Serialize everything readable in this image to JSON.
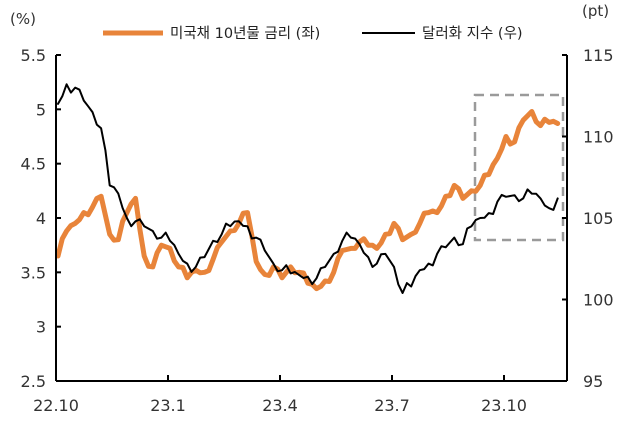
{
  "chart_data": {
    "type": "line",
    "title": "",
    "units": {
      "left": "(%)",
      "right": "(pt)"
    },
    "xlabel": "",
    "ylabel_left": "(%)",
    "ylabel_right": "(pt)",
    "x_tick_labels": [
      "22.10",
      "23.1",
      "23.4",
      "23.7",
      "23.10"
    ],
    "y_left_ticks": [
      "5.5",
      "5",
      "4.5",
      "4",
      "3.5",
      "3",
      "2.5"
    ],
    "y_right_ticks": [
      "115",
      "110",
      "105",
      "100",
      "95"
    ],
    "ylim_left": [
      2.5,
      5.5
    ],
    "ylim_right": [
      95,
      115
    ],
    "grid": false,
    "legend_position": "top",
    "annotations": [
      {
        "type": "dashed-box",
        "description": "Highlight of recent period (approx. Sep–Nov 2023)",
        "color": "#9A9A9A"
      }
    ],
    "x": [
      "22.10.03",
      "22.10.10",
      "22.10.17",
      "22.10.24",
      "22.10.31",
      "22.11.07",
      "22.11.14",
      "22.11.21",
      "22.11.28",
      "22.12.05",
      "22.12.12",
      "22.12.19",
      "22.12.26",
      "23.01.02",
      "23.01.09",
      "23.01.16",
      "23.01.23",
      "23.01.30",
      "23.02.06",
      "23.02.13",
      "23.02.20",
      "23.02.27",
      "23.03.06",
      "23.03.13",
      "23.03.20",
      "23.03.27",
      "23.04.03",
      "23.04.10",
      "23.04.17",
      "23.04.24",
      "23.05.01",
      "23.05.08",
      "23.05.15",
      "23.05.22",
      "23.05.29",
      "23.06.05",
      "23.06.12",
      "23.06.19",
      "23.06.26",
      "23.07.03",
      "23.07.10",
      "23.07.17",
      "23.07.24",
      "23.07.31",
      "23.08.07",
      "23.08.14",
      "23.08.21",
      "23.08.28",
      "23.09.04",
      "23.09.11",
      "23.09.18",
      "23.09.25",
      "23.10.02",
      "23.10.09",
      "23.10.16",
      "23.10.23",
      "23.10.30",
      "23.11.06",
      "23.11.13"
    ],
    "series": [
      {
        "name": "미국채 10년물 금리 (좌)",
        "axis": "left",
        "color": "#E8843A",
        "values": [
          3.65,
          3.88,
          3.95,
          4.05,
          4.1,
          4.2,
          3.85,
          3.8,
          4.05,
          4.18,
          3.65,
          3.55,
          3.75,
          3.72,
          3.55,
          3.45,
          3.52,
          3.5,
          3.62,
          3.78,
          3.88,
          3.95,
          4.05,
          3.6,
          3.48,
          3.55,
          3.45,
          3.55,
          3.5,
          3.4,
          3.35,
          3.42,
          3.5,
          3.7,
          3.72,
          3.78,
          3.75,
          3.72,
          3.85,
          3.95,
          3.8,
          3.85,
          3.95,
          4.05,
          4.05,
          4.2,
          4.3,
          4.18,
          4.25,
          4.3,
          4.4,
          4.55,
          4.75,
          4.7,
          4.9,
          4.98,
          4.85,
          4.88,
          4.87
        ]
      },
      {
        "name": "달러화 지수 (우)",
        "axis": "right",
        "color": "#000000",
        "values": [
          112.0,
          113.2,
          113.0,
          112.2,
          111.5,
          110.5,
          107.0,
          106.5,
          105.0,
          104.8,
          104.5,
          104.2,
          103.8,
          103.6,
          102.8,
          102.2,
          102.0,
          102.6,
          103.6,
          104.0,
          104.5,
          104.8,
          104.5,
          103.8,
          103.0,
          102.2,
          101.8,
          101.6,
          101.5,
          101.4,
          101.3,
          102.0,
          102.8,
          103.6,
          103.8,
          103.4,
          102.6,
          102.2,
          102.8,
          102.0,
          100.4,
          100.8,
          101.8,
          102.2,
          102.8,
          103.2,
          103.8,
          103.4,
          104.5,
          105.0,
          105.3,
          106.0,
          106.3,
          106.4,
          106.2,
          106.5,
          106.2,
          105.6,
          106.2
        ]
      }
    ]
  },
  "legend": {
    "items": [
      {
        "label": "미국채 10년물 금리 (좌)",
        "color": "#E8843A"
      },
      {
        "label": "달러화 지수 (우)",
        "color": "#000000"
      }
    ]
  },
  "axes": {
    "left_unit": "(%)",
    "right_unit": "(pt)"
  }
}
